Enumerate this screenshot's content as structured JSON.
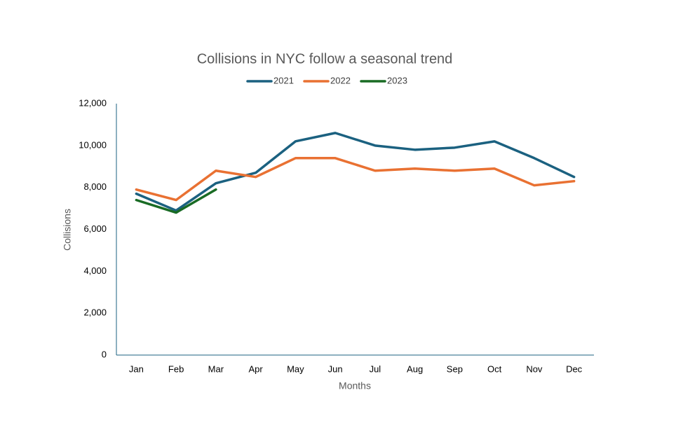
{
  "chart_data": {
    "type": "line",
    "title": "Collisions in NYC follow a seasonal trend",
    "x_label": "Months",
    "y_label": "Collisions",
    "categories": [
      "Jan",
      "Feb",
      "Mar",
      "Apr",
      "May",
      "Jun",
      "Jul",
      "Aug",
      "Sep",
      "Oct",
      "Nov",
      "Dec"
    ],
    "series": [
      {
        "name": "2021",
        "color": "#1b6180",
        "values": [
          7700,
          6900,
          8200,
          8700,
          10200,
          10600,
          10000,
          9800,
          9900,
          10200,
          9400,
          8500
        ]
      },
      {
        "name": "2022",
        "color": "#e97132",
        "values": [
          7900,
          7400,
          8800,
          8500,
          9400,
          9400,
          8800,
          8900,
          8800,
          8900,
          8100,
          8300
        ]
      },
      {
        "name": "2023",
        "color": "#196b24",
        "values": [
          7400,
          6800,
          7900,
          null,
          null,
          null,
          null,
          null,
          null,
          null,
          null,
          null
        ]
      }
    ],
    "ylim": [
      0,
      12000
    ],
    "yticks": [
      0,
      {
        "value": 2000,
        "label": "2,000"
      },
      {
        "value": 4000,
        "label": "4,000"
      },
      {
        "value": 6000,
        "label": "6,000"
      },
      {
        "value": 8000,
        "label": "8,000"
      },
      {
        "value": 10000,
        "label": "10,000"
      },
      {
        "value": 12000,
        "label": "12,000"
      }
    ],
    "legend": "top",
    "grid": false
  }
}
